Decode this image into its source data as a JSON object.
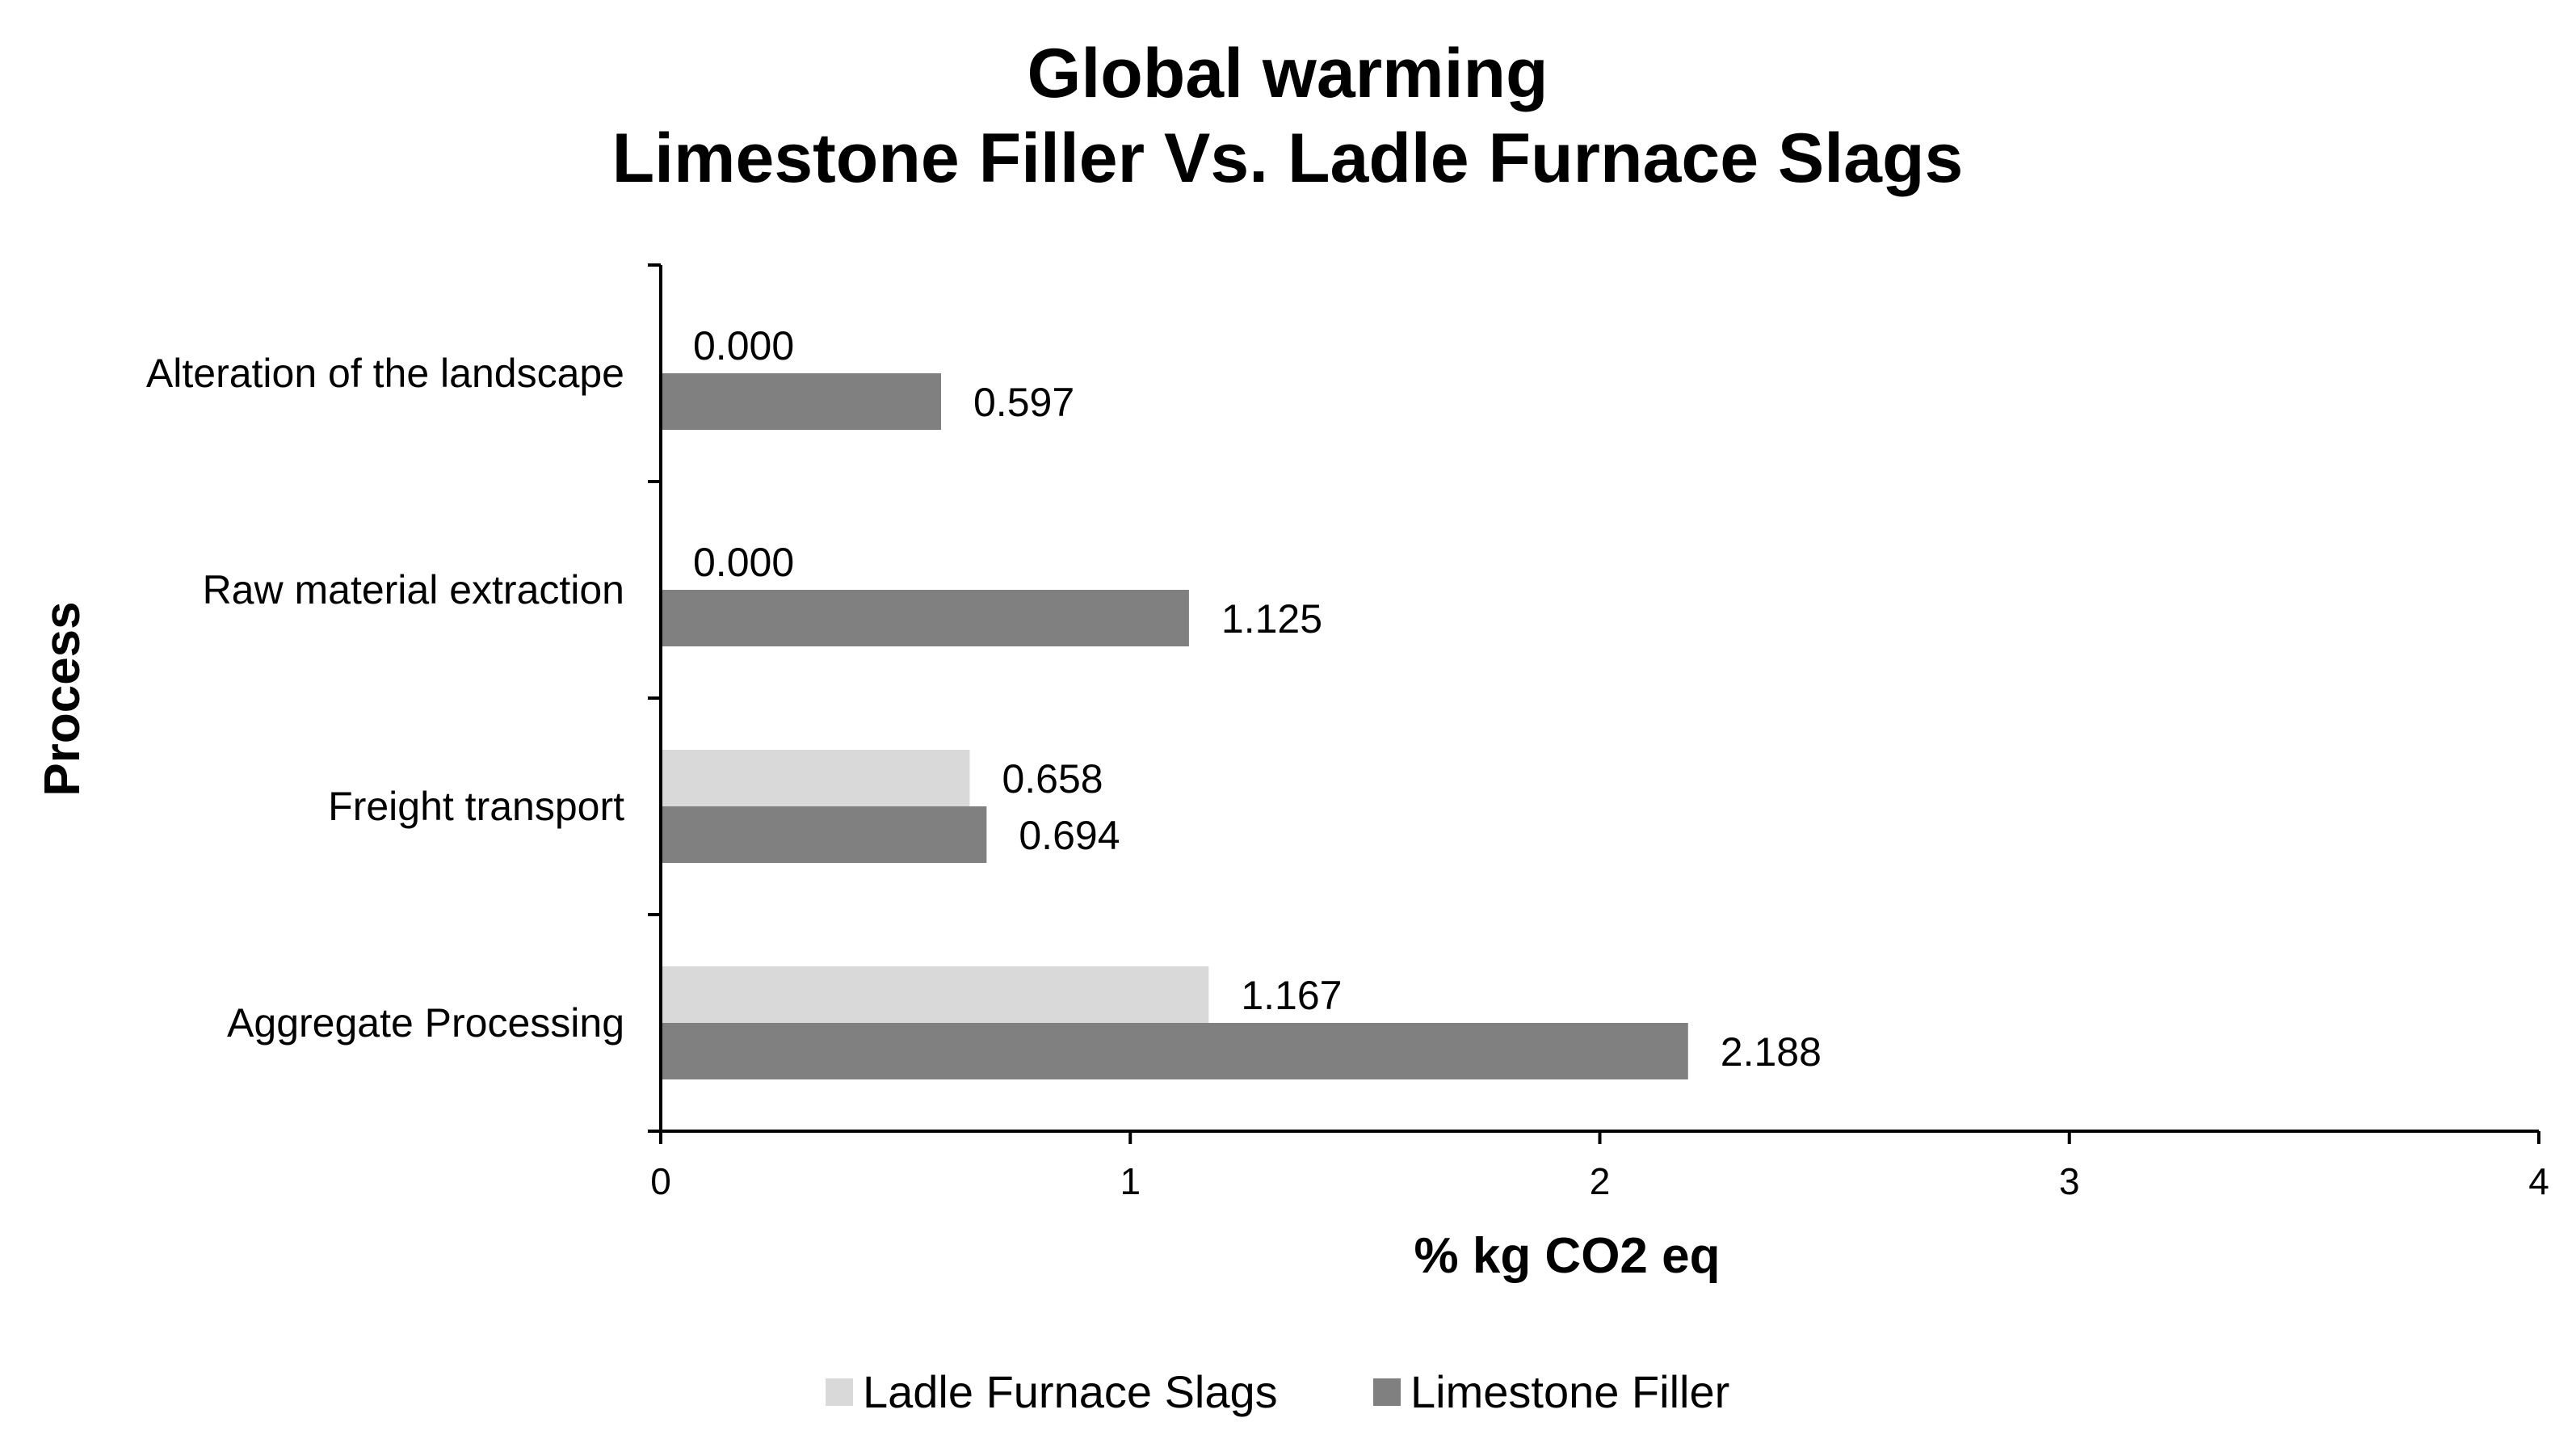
{
  "chart_data": {
    "type": "bar",
    "orientation": "horizontal",
    "title_lines": [
      "Global warming",
      "Limestone Filler Vs. Ladle Furnace Slags"
    ],
    "categories": [
      "Alteration of the landscape",
      "Raw material extraction",
      "Freight transport",
      "Aggregate Processing"
    ],
    "series": [
      {
        "name": "Ladle Furnace Slags",
        "color": "#d9d9d9",
        "values": [
          0.0,
          0.0,
          0.658,
          1.167
        ],
        "labels": [
          "0.000",
          "0.000",
          "0.658",
          "1.167"
        ]
      },
      {
        "name": "Limestone Filler",
        "color": "#808080",
        "values": [
          0.597,
          1.125,
          0.694,
          2.188
        ],
        "labels": [
          "0.597",
          "1.125",
          "0.694",
          "2.188"
        ]
      }
    ],
    "xlabel": "% kg CO2 eq",
    "ylabel": "Process",
    "xlim": [
      0,
      4
    ],
    "xticks": [
      0,
      1,
      2,
      3,
      4
    ],
    "xtick_labels": [
      "0",
      "1",
      "2",
      "3",
      "4"
    ],
    "grid": false,
    "legend_position": "bottom"
  }
}
